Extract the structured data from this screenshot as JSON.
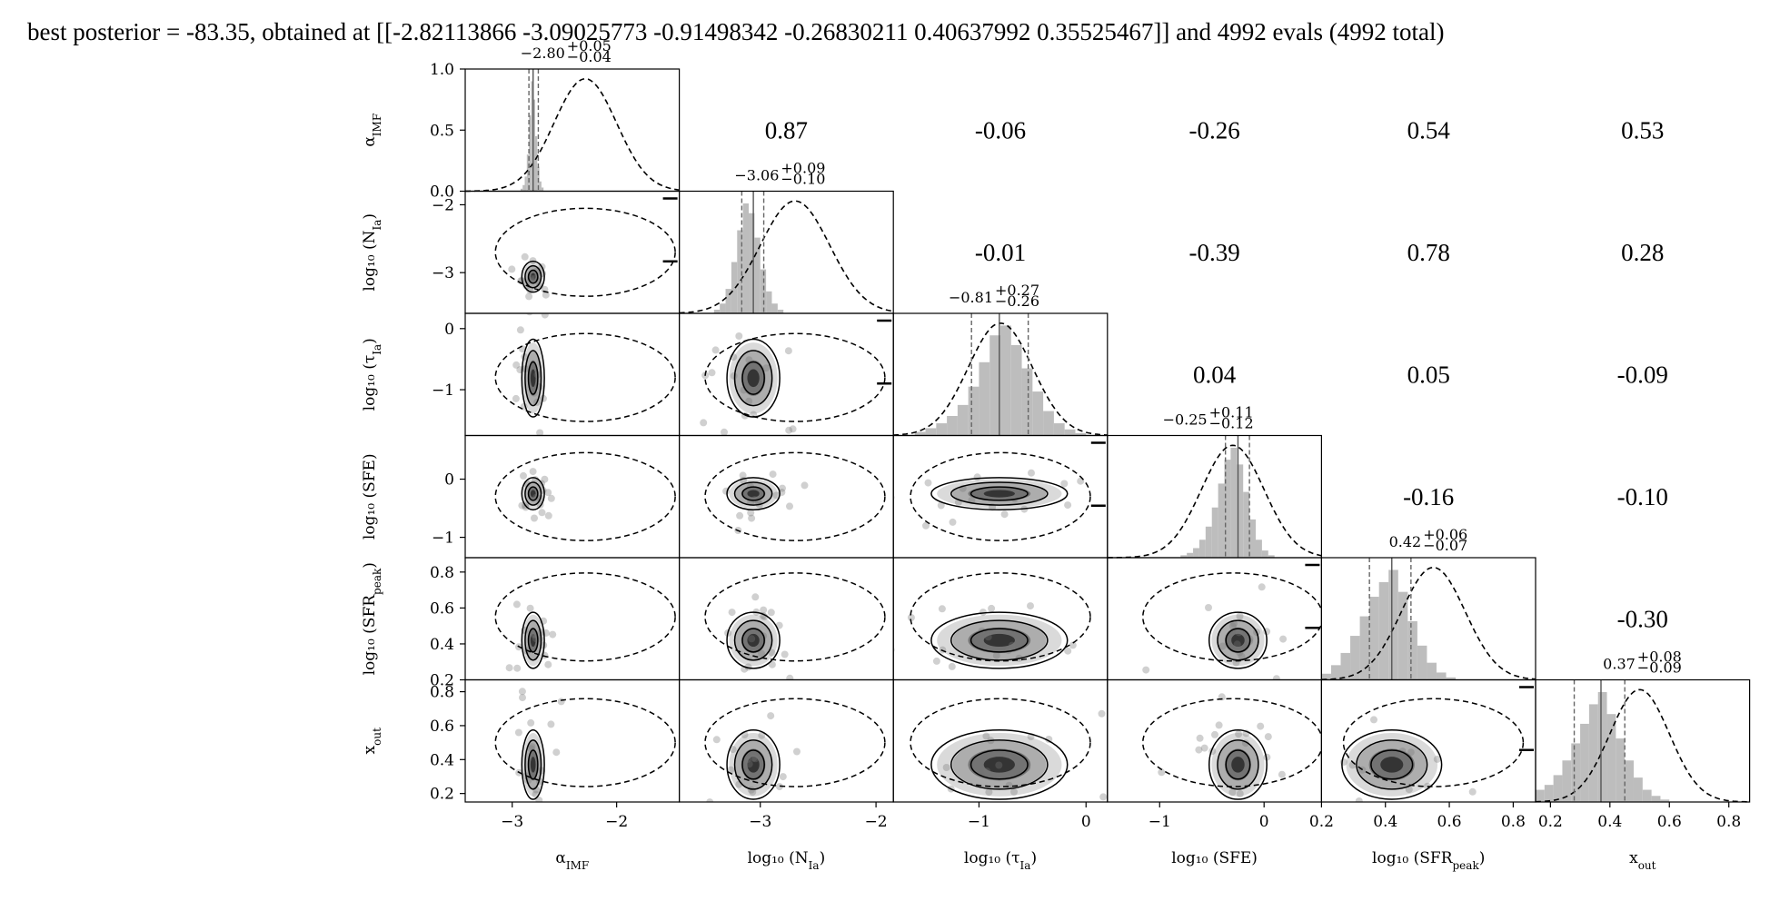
{
  "header": {
    "text": "best posterior = -83.35, obtained at [[-2.82113866 -3.09025773 -0.91498342 -0.26830211 0.40637992 0.35525467]] and 4992 evals (4992 total)"
  },
  "chart_data": {
    "type": "corner",
    "parameters": [
      {
        "key": "alpha",
        "label_base": "α",
        "label_sub": "IMF",
        "label_prefix": "",
        "median": -2.8,
        "err_plus": 0.05,
        "err_minus": 0.04,
        "title_main": "−2.80",
        "title_plus": "+0.05",
        "title_minus": "−0.04",
        "range": [
          -3.45,
          -1.4
        ],
        "ticks": [
          -3,
          -2
        ],
        "tick_labels": [
          "−3",
          "−2"
        ],
        "prior_mean": -2.3,
        "prior_sd": 0.3
      },
      {
        "key": "nia",
        "label_base": "(N",
        "label_sub": "Ia",
        "label_prefix": "log₁₀ ",
        "label_suffix": ")",
        "median": -3.06,
        "err_plus": 0.09,
        "err_minus": 0.1,
        "title_main": "−3.06",
        "title_plus": "+0.09",
        "title_minus": "−0.10",
        "range": [
          -3.7,
          -1.85
        ],
        "ticks": [
          -3,
          -2
        ],
        "tick_labels": [
          "−3",
          "−2"
        ],
        "prior_mean": -2.7,
        "prior_sd": 0.3
      },
      {
        "key": "tau",
        "label_base": "(τ",
        "label_sub": "Ia",
        "label_prefix": "log₁₀ ",
        "label_suffix": ")",
        "median": -0.81,
        "err_plus": 0.27,
        "err_minus": 0.26,
        "title_main": "−0.81",
        "title_plus": "+0.27",
        "title_minus": "−0.26",
        "range": [
          -1.8,
          0.2
        ],
        "ticks": [
          -1,
          0
        ],
        "tick_labels": [
          "−1",
          "0"
        ],
        "prior_mean": -0.8,
        "prior_sd": 0.3
      },
      {
        "key": "sfe",
        "label_base": "(SFE)",
        "label_sub": "",
        "label_prefix": "log₁₀ ",
        "median": -0.25,
        "err_plus": 0.11,
        "err_minus": 0.12,
        "title_main": "−0.25",
        "title_plus": "+0.11",
        "title_minus": "−0.12",
        "range": [
          -1.5,
          0.55
        ],
        "ticks": [
          -1,
          0
        ],
        "tick_labels": [
          "−1",
          "0"
        ],
        "prior_mean": -0.3,
        "prior_sd": 0.3
      },
      {
        "key": "sfr",
        "label_base": "(SFR",
        "label_sub": "peak",
        "label_prefix": "log₁₀ ",
        "label_suffix": ")",
        "median": 0.42,
        "err_plus": 0.06,
        "err_minus": 0.07,
        "title_main": "0.42",
        "title_plus": "+0.06",
        "title_minus": "−0.07",
        "range": [
          0.2,
          0.87
        ],
        "ticks": [
          0.2,
          0.4,
          0.6,
          0.8
        ],
        "tick_labels": [
          "0.2",
          "0.4",
          "0.6",
          "0.8"
        ],
        "prior_mean": 0.55,
        "prior_sd": 0.1
      },
      {
        "key": "xout",
        "label_base": "x",
        "label_sub": "out",
        "label_prefix": "",
        "median": 0.37,
        "err_plus": 0.08,
        "err_minus": 0.09,
        "title_main": "0.37",
        "title_plus": "+0.08",
        "title_minus": "−0.09",
        "range": [
          0.15,
          0.87
        ],
        "ticks": [
          0.2,
          0.4,
          0.6,
          0.8
        ],
        "tick_labels": [
          "0.2",
          "0.4",
          "0.6",
          "0.8"
        ],
        "prior_mean": 0.5,
        "prior_sd": 0.1
      }
    ],
    "row_axes": [
      {
        "row": 0,
        "range": [
          0,
          1.0
        ],
        "ticks": [
          0.0,
          0.5,
          1.0
        ],
        "tick_labels": [
          "0.0",
          "0.5",
          "1.0"
        ]
      },
      {
        "row": 1,
        "range": [
          -3.6,
          -1.8
        ],
        "ticks": [
          -3,
          -2
        ],
        "tick_labels": [
          "−3",
          "−2"
        ]
      },
      {
        "row": 2,
        "range": [
          -1.75,
          0.25
        ],
        "ticks": [
          -1,
          0
        ],
        "tick_labels": [
          "−1",
          "0"
        ]
      },
      {
        "row": 3,
        "range": [
          -1.35,
          0.75
        ],
        "ticks": [
          -1,
          0
        ],
        "tick_labels": [
          "−1",
          "0"
        ]
      },
      {
        "row": 4,
        "range": [
          0.2,
          0.88
        ],
        "ticks": [
          0.2,
          0.4,
          0.6,
          0.8
        ],
        "tick_labels": [
          "0.2",
          "0.4",
          "0.6",
          "0.8"
        ]
      },
      {
        "row": 5,
        "range": [
          0.15,
          0.87
        ],
        "ticks": [
          0.2,
          0.4,
          0.6,
          0.8
        ],
        "tick_labels": [
          "0.2",
          "0.4",
          "0.6",
          "0.8"
        ]
      }
    ],
    "correlations": [
      {
        "row": 0,
        "col": 1,
        "value": "0.87"
      },
      {
        "row": 0,
        "col": 2,
        "value": "-0.06"
      },
      {
        "row": 0,
        "col": 3,
        "value": "-0.26"
      },
      {
        "row": 0,
        "col": 4,
        "value": "0.54"
      },
      {
        "row": 0,
        "col": 5,
        "value": "0.53"
      },
      {
        "row": 1,
        "col": 2,
        "value": "-0.01"
      },
      {
        "row": 1,
        "col": 3,
        "value": "-0.39"
      },
      {
        "row": 1,
        "col": 4,
        "value": "0.78"
      },
      {
        "row": 1,
        "col": 5,
        "value": "0.28"
      },
      {
        "row": 2,
        "col": 3,
        "value": "0.04"
      },
      {
        "row": 2,
        "col": 4,
        "value": "0.05"
      },
      {
        "row": 2,
        "col": 5,
        "value": "-0.09"
      },
      {
        "row": 3,
        "col": 4,
        "value": "-0.16"
      },
      {
        "row": 3,
        "col": 5,
        "value": "-0.10"
      },
      {
        "row": 4,
        "col": 5,
        "value": "-0.30"
      }
    ],
    "marginal_histograms": {
      "alpha": {
        "edges": [
          -2.92,
          -2.9,
          -2.88,
          -2.86,
          -2.84,
          -2.82,
          -2.8,
          -2.78,
          -2.76,
          -2.74,
          -2.72,
          -2.7
        ],
        "counts": [
          0.02,
          0.05,
          0.12,
          0.3,
          0.62,
          0.9,
          0.75,
          0.45,
          0.2,
          0.08,
          0.03
        ]
      },
      "nia": {
        "edges": [
          -3.4,
          -3.35,
          -3.3,
          -3.25,
          -3.2,
          -3.15,
          -3.1,
          -3.05,
          -3.0,
          -2.95,
          -2.9,
          -2.85,
          -2.8
        ],
        "counts": [
          0.03,
          0.08,
          0.2,
          0.42,
          0.68,
          0.9,
          0.82,
          0.62,
          0.36,
          0.18,
          0.08,
          0.03
        ]
      },
      "tau": {
        "edges": [
          -1.6,
          -1.5,
          -1.4,
          -1.3,
          -1.2,
          -1.1,
          -1.0,
          -0.9,
          -0.8,
          -0.7,
          -0.6,
          -0.5,
          -0.4,
          -0.3,
          -0.2,
          -0.1,
          0.0
        ],
        "counts": [
          0.03,
          0.06,
          0.1,
          0.16,
          0.25,
          0.4,
          0.6,
          0.82,
          0.9,
          0.74,
          0.55,
          0.36,
          0.2,
          0.1,
          0.05,
          0.02
        ]
      },
      "sfe": {
        "edges": [
          -0.8,
          -0.74,
          -0.68,
          -0.62,
          -0.56,
          -0.5,
          -0.44,
          -0.38,
          -0.32,
          -0.26,
          -0.2,
          -0.14,
          -0.08,
          -0.02,
          0.04,
          0.1
        ],
        "counts": [
          0.02,
          0.04,
          0.08,
          0.15,
          0.26,
          0.42,
          0.62,
          0.82,
          0.92,
          0.78,
          0.55,
          0.32,
          0.15,
          0.06,
          0.02
        ]
      },
      "sfr": {
        "edges": [
          0.2,
          0.23,
          0.26,
          0.29,
          0.32,
          0.35,
          0.38,
          0.41,
          0.44,
          0.47,
          0.5,
          0.53,
          0.56,
          0.59,
          0.62
        ],
        "counts": [
          0.05,
          0.12,
          0.22,
          0.36,
          0.52,
          0.68,
          0.8,
          0.9,
          0.72,
          0.48,
          0.28,
          0.14,
          0.06,
          0.02
        ]
      },
      "xout": {
        "edges": [
          0.15,
          0.18,
          0.21,
          0.24,
          0.27,
          0.3,
          0.33,
          0.36,
          0.39,
          0.42,
          0.45,
          0.48,
          0.51,
          0.54,
          0.57,
          0.6
        ],
        "counts": [
          0.1,
          0.14,
          0.22,
          0.34,
          0.48,
          0.64,
          0.8,
          0.9,
          0.72,
          0.52,
          0.34,
          0.2,
          0.1,
          0.05,
          0.02
        ]
      }
    },
    "y_axis_label_row0": "α_IMF",
    "prior_marginal_visible": true,
    "contour_levels": 3,
    "grid": false
  }
}
